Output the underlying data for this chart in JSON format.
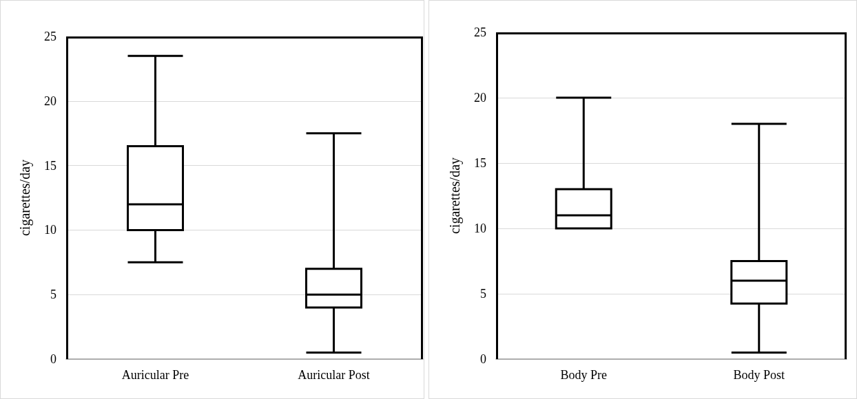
{
  "chart_data": [
    {
      "type": "box",
      "ylabel": "cigarettes/day",
      "categories": [
        "Auricular Pre",
        "Auricular Post"
      ],
      "color": "#000000",
      "ylim": [
        0,
        25
      ],
      "yticks": [
        0,
        5,
        10,
        15,
        20,
        25
      ],
      "grid": "y",
      "boxes": [
        {
          "low": 7.5,
          "q1": 10,
          "median": 12,
          "q3": 16.5,
          "high": 23.5
        },
        {
          "low": 0.5,
          "q1": 4,
          "median": 5,
          "q3": 7,
          "high": 17.5
        }
      ]
    },
    {
      "type": "box",
      "ylabel": "cigarettes/day",
      "categories": [
        "Body Pre",
        "Body Post"
      ],
      "color": "#000000",
      "ylim": [
        0,
        25
      ],
      "yticks": [
        0,
        5,
        10,
        15,
        20,
        25
      ],
      "grid": "y",
      "boxes": [
        {
          "low": 10,
          "q1": 10,
          "median": 11,
          "q3": 13,
          "high": 20
        },
        {
          "low": 0.5,
          "q1": 4.25,
          "median": 6,
          "q3": 7.5,
          "high": 18
        }
      ]
    }
  ]
}
